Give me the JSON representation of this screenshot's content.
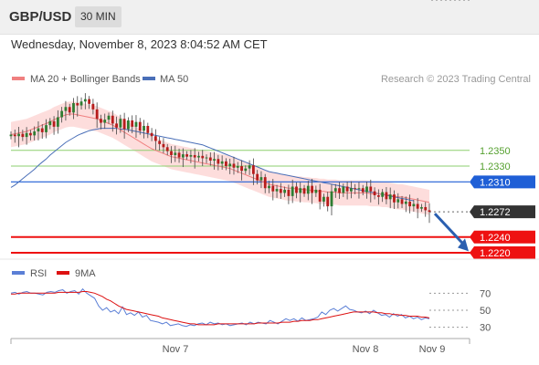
{
  "header": {
    "symbol": "GBP/USD",
    "timeframe": "30 MIN",
    "datetime": "Wednesday, November 8, 2023 8:04:52 AM CET"
  },
  "legend": {
    "ma20_label": "MA 20 + Bollinger Bands",
    "ma50_label": "MA 50",
    "credit": "Research © 2023 Trading Central",
    "rsi_label": "RSI",
    "rsi_ma_label": "9MA"
  },
  "colors": {
    "ma20": "#f08080",
    "bands_fill": "#fcd5d3",
    "ma50": "#4a6fb8",
    "resistance": "#8ecf6f",
    "pivot": "#1f5fd6",
    "support": "#ee1111",
    "current": "#333333",
    "candle_up": "#2e7d32",
    "candle_down": "#b71c1c",
    "rsi": "#5b7fd6",
    "rsi_ma": "#dd1111",
    "arrow": "#2a5fb0"
  },
  "chart_data": [
    {
      "type": "candlestick",
      "title": "GBP/USD",
      "x_tick_labels": [
        "Nov 7",
        "Nov 8",
        "Nov 9"
      ],
      "ylim": [
        1.2205,
        1.2425
      ],
      "levels": [
        {
          "label": "1.2350",
          "value": 1.235,
          "kind": "resistance"
        },
        {
          "label": "1.2330",
          "value": 1.233,
          "kind": "resistance"
        },
        {
          "label": "1.2310",
          "value": 1.231,
          "kind": "pivot"
        },
        {
          "label": "1.2272",
          "value": 1.2272,
          "kind": "current"
        },
        {
          "label": "1.2240",
          "value": 1.224,
          "kind": "support"
        },
        {
          "label": "1.2220",
          "value": 1.222,
          "kind": "support"
        }
      ],
      "closes": [
        1.237,
        1.2368,
        1.2371,
        1.2367,
        1.2372,
        1.2369,
        1.2374,
        1.2378,
        1.2373,
        1.2382,
        1.2387,
        1.238,
        1.2392,
        1.24,
        1.2405,
        1.2398,
        1.241,
        1.2407,
        1.2412,
        1.2415,
        1.2409,
        1.2402,
        1.239,
        1.2385,
        1.2389,
        1.2394,
        1.2384,
        1.2379,
        1.239,
        1.2377,
        1.2388,
        1.238,
        1.2386,
        1.2375,
        1.2381,
        1.2372,
        1.2368,
        1.2362,
        1.2358,
        1.2354,
        1.2349,
        1.2344,
        1.2347,
        1.2341,
        1.2345,
        1.2342,
        1.2344,
        1.2341,
        1.2343,
        1.234,
        1.2341,
        1.2337,
        1.2339,
        1.2333,
        1.2336,
        1.233,
        1.2333,
        1.2328,
        1.233,
        1.2324,
        1.2327,
        1.2331,
        1.232,
        1.2312,
        1.2316,
        1.2302,
        1.2305,
        1.2298,
        1.2301,
        1.2296,
        1.23,
        1.2292,
        1.2304,
        1.2296,
        1.2302,
        1.2295,
        1.2305,
        1.2296,
        1.23,
        1.2285,
        1.2291,
        1.2279,
        1.2298,
        1.2302,
        1.2296,
        1.2304,
        1.2298,
        1.2302,
        1.2301,
        1.2302,
        1.2297,
        1.2304,
        1.2298,
        1.2293,
        1.2291,
        1.2297,
        1.2288,
        1.2294,
        1.2284,
        1.2288,
        1.2282,
        1.2285,
        1.2279,
        1.2282,
        1.2276,
        1.2278,
        1.2274,
        1.2272
      ],
      "ma20": [
        1.237,
        1.2371,
        1.2372,
        1.2373,
        1.2374,
        1.2376,
        1.2378,
        1.238,
        1.2382,
        1.2384,
        1.2386,
        1.2389,
        1.2391,
        1.2393,
        1.2395,
        1.2396,
        1.2396,
        1.2395,
        1.2394,
        1.2393,
        1.2392,
        1.2391,
        1.239,
        1.2388,
        1.2386,
        1.2384,
        1.2382,
        1.2379,
        1.2376,
        1.2373,
        1.237,
        1.2367,
        1.2364,
        1.2361,
        1.2358,
        1.2355,
        1.2352,
        1.235,
        1.2348,
        1.2346,
        1.2344,
        1.2342,
        1.2341,
        1.234,
        1.2339,
        1.2338,
        1.2337,
        1.2336,
        1.2335,
        1.2334,
        1.2333,
        1.2332,
        1.2331,
        1.233,
        1.2329,
        1.2328,
        1.2327,
        1.2325,
        1.2323,
        1.2321,
        1.2319,
        1.2317,
        1.2315,
        1.2313,
        1.2311,
        1.2309,
        1.2307,
        1.2306,
        1.2305,
        1.2304,
        1.2303,
        1.2302,
        1.2302,
        1.2301,
        1.2301,
        1.23,
        1.23,
        1.2299,
        1.2299,
        1.2298,
        1.2298,
        1.2297,
        1.2297,
        1.2297,
        1.2296,
        1.2296,
        1.2296,
        1.2296,
        1.2296,
        1.2296,
        1.2296,
        1.2296,
        1.2295,
        1.2295,
        1.2295,
        1.2294,
        1.2294,
        1.2293,
        1.2292,
        1.2291,
        1.2291,
        1.229,
        1.2289,
        1.2288,
        1.2287,
        1.2286,
        1.2285,
        1.2284
      ],
      "ma50": [
        1.2303,
        1.2306,
        1.231,
        1.2314,
        1.2318,
        1.2322,
        1.2326,
        1.2331,
        1.2335,
        1.2339,
        1.2344,
        1.2348,
        1.2352,
        1.2356,
        1.236,
        1.2363,
        1.2366,
        1.2369,
        1.2371,
        1.2373,
        1.2375,
        1.2376,
        1.2377,
        1.2378,
        1.2378,
        1.2378,
        1.2378,
        1.2378,
        1.2377,
        1.2377,
        1.2376,
        1.2375,
        1.2374,
        1.2373,
        1.2372,
        1.2371,
        1.237,
        1.2369,
        1.2368,
        1.2367,
        1.2366,
        1.2365,
        1.2364,
        1.2363,
        1.2362,
        1.2361,
        1.236,
        1.2359,
        1.2358,
        1.2357,
        1.2355,
        1.2353,
        1.2351,
        1.2349,
        1.2347,
        1.2345,
        1.2343,
        1.2341,
        1.2339,
        1.2337,
        1.2335,
        1.2333,
        1.2331,
        1.2329,
        1.2327,
        1.2325,
        1.2323,
        1.2322,
        1.2321,
        1.232,
        1.2319,
        1.2318,
        1.2317,
        1.2316,
        1.2315,
        1.2314,
        1.2313,
        1.2312,
        1.2311,
        1.231,
        1.2309,
        1.2308,
        1.2307,
        1.2306,
        1.2305,
        1.2304,
        1.2303,
        1.2302,
        1.2301,
        1.23,
        1.2299,
        1.2298,
        1.2297,
        1.2296,
        1.2295,
        1.2294,
        1.2293,
        1.2292,
        1.2291,
        1.229,
        1.2289,
        1.2288,
        1.2287,
        1.2286
      ],
      "band_width": 0.0016,
      "projection": {
        "from": 1.2272,
        "to": 1.2222
      }
    },
    {
      "type": "line",
      "title": "RSI",
      "ylim": [
        20,
        80
      ],
      "y_ticks": [
        70,
        50,
        30
      ],
      "series": [
        {
          "name": "RSI",
          "values": [
            70,
            71,
            69,
            71,
            72,
            70,
            70,
            69,
            68,
            71,
            72,
            71,
            73,
            74,
            70,
            72,
            73,
            69,
            75,
            70,
            67,
            64,
            55,
            50,
            53,
            48,
            50,
            46,
            54,
            45,
            47,
            44,
            48,
            42,
            44,
            38,
            37,
            36,
            34,
            36,
            32,
            33,
            34,
            32,
            31,
            33,
            32,
            34,
            35,
            33,
            36,
            34,
            35,
            33,
            34,
            32,
            33,
            34,
            35,
            33,
            36,
            34,
            36,
            35,
            34,
            38,
            36,
            34,
            37,
            40,
            38,
            40,
            37,
            41,
            38,
            39,
            40,
            42,
            48,
            45,
            50,
            52,
            49,
            52,
            55,
            51,
            50,
            48,
            47,
            49,
            46,
            50,
            47,
            44,
            45,
            42,
            46,
            43,
            45,
            41,
            43,
            40,
            42,
            39,
            41,
            40
          ]
        },
        {
          "name": "9MA",
          "values": [
            69,
            69,
            70,
            70,
            70,
            70,
            70,
            70,
            70,
            70,
            70,
            70,
            71,
            71,
            71,
            71,
            71,
            71,
            72,
            72,
            71,
            70,
            68,
            66,
            63,
            61,
            58,
            55,
            53,
            51,
            50,
            49,
            48,
            47,
            46,
            45,
            44,
            43,
            41,
            40,
            39,
            38,
            37,
            36,
            35,
            34,
            34,
            33,
            33,
            33,
            33,
            33,
            34,
            34,
            34,
            34,
            34,
            34,
            34,
            34,
            34,
            34,
            35,
            35,
            35,
            35,
            35,
            35,
            36,
            36,
            36,
            37,
            37,
            38,
            38,
            38,
            39,
            39,
            40,
            41,
            42,
            43,
            44,
            45,
            46,
            47,
            48,
            48,
            48,
            48,
            48,
            48,
            47,
            47,
            46,
            46,
            45,
            45,
            44,
            44,
            43,
            43,
            43,
            42,
            42,
            41
          ]
        }
      ]
    }
  ]
}
